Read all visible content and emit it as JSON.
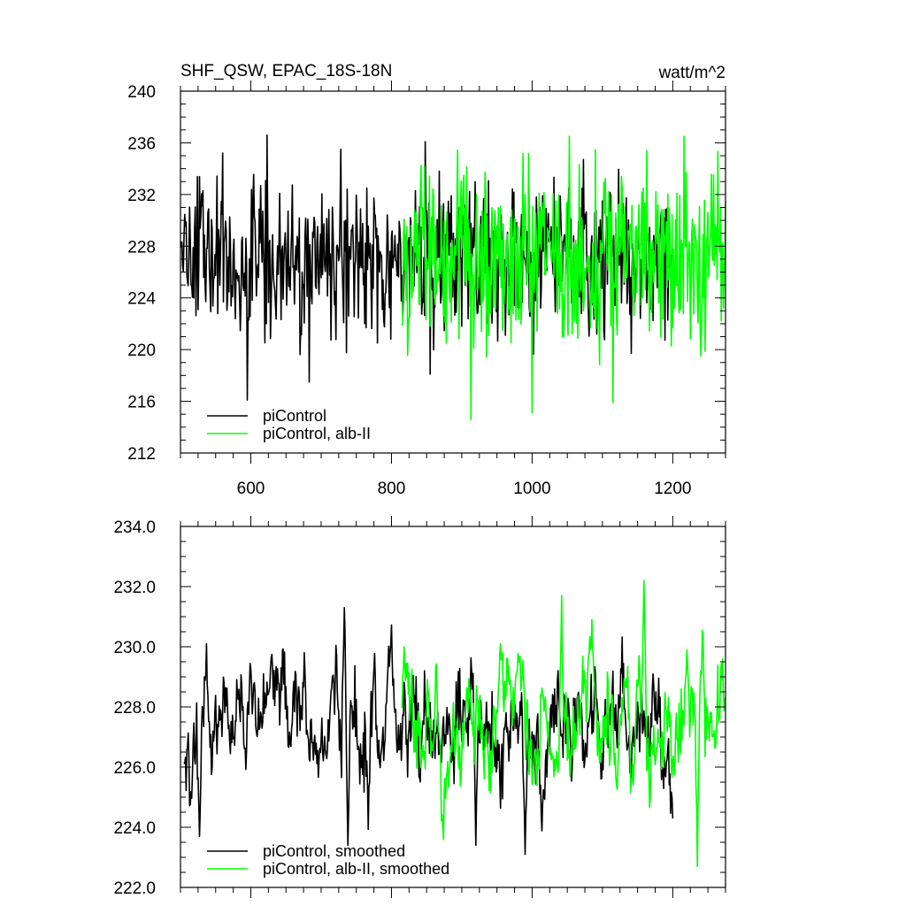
{
  "colors": {
    "black": "#000000",
    "green": "#00ff00",
    "background": "#ffffff"
  },
  "chart_data": [
    {
      "type": "line",
      "title": "SHF_QSW, EPAC_18S-18N",
      "units": "watt/m^2",
      "xlim": [
        500,
        1275
      ],
      "ylim": [
        212,
        240
      ],
      "x_ticks": [
        600,
        800,
        1000,
        1200
      ],
      "x_tick_labels": [
        "600",
        "800",
        "1000",
        "1200"
      ],
      "y_ticks": [
        212,
        216,
        220,
        224,
        228,
        232,
        236,
        240
      ],
      "y_tick_labels": [
        "212",
        "216",
        "220",
        "224",
        "228",
        "232",
        "236",
        "240"
      ],
      "grid": false,
      "legend_position": "bottom-left",
      "series": [
        {
          "name": "piControl",
          "color": "#000000",
          "x_start": 500,
          "x_end": 1200,
          "mean": 227.0,
          "spread": 2.9,
          "min": 216.1,
          "max": 236.6,
          "peaks": [
            [
              560,
              235.2
            ],
            [
              595,
              216.1
            ],
            [
              623,
              236.6
            ],
            [
              683,
              217.5
            ],
            [
              728,
              235.5
            ],
            [
              848,
              236.1
            ],
            [
              855,
              218.1
            ]
          ]
        },
        {
          "name": "piControl, alb-II",
          "color": "#00ff00",
          "x_start": 815,
          "x_end": 1275,
          "mean": 227.2,
          "spread": 3.4,
          "min": 214.6,
          "max": 236.5,
          "peaks": [
            [
              913,
              214.6
            ],
            [
              1000,
              215.1
            ],
            [
              1053,
              236.5
            ],
            [
              1115,
              215.9
            ],
            [
              1163,
              235.4
            ],
            [
              1240,
              219.5
            ]
          ]
        }
      ]
    },
    {
      "type": "line",
      "title": "",
      "xlim": [
        500,
        1275
      ],
      "ylim": [
        222,
        234
      ],
      "x_ticks": [
        600,
        800,
        1000,
        1200
      ],
      "y_ticks": [
        222,
        224,
        226,
        228,
        230,
        232,
        234
      ],
      "y_tick_labels": [
        "222.0",
        "224.0",
        "226.0",
        "228.0",
        "230.0",
        "232.0",
        "234.0"
      ],
      "grid": false,
      "legend_position": "bottom-left",
      "series": [
        {
          "name": "piControl, smoothed",
          "color": "#000000",
          "x_start": 505,
          "x_end": 1200,
          "mean": 227.3,
          "spread": 1.6,
          "min": 223.1,
          "max": 231.3,
          "peaks": [
            [
              527,
              223.7
            ],
            [
              537,
              230.1
            ],
            [
              733,
              231.3
            ],
            [
              738,
              223.4
            ],
            [
              920,
              223.4
            ],
            [
              990,
              223.1
            ]
          ]
        },
        {
          "name": "piControl, alb-II, smoothed",
          "color": "#00ff00",
          "x_start": 815,
          "x_end": 1275,
          "mean": 227.5,
          "spread": 1.7,
          "min": 222.7,
          "max": 232.2,
          "peaks": [
            [
              818,
              230.0
            ],
            [
              955,
              230.1
            ],
            [
              1042,
              231.7
            ],
            [
              1085,
              230.9
            ],
            [
              1159,
              232.2
            ],
            [
              1220,
              229.9
            ],
            [
              1235,
              222.7
            ]
          ]
        }
      ]
    }
  ]
}
